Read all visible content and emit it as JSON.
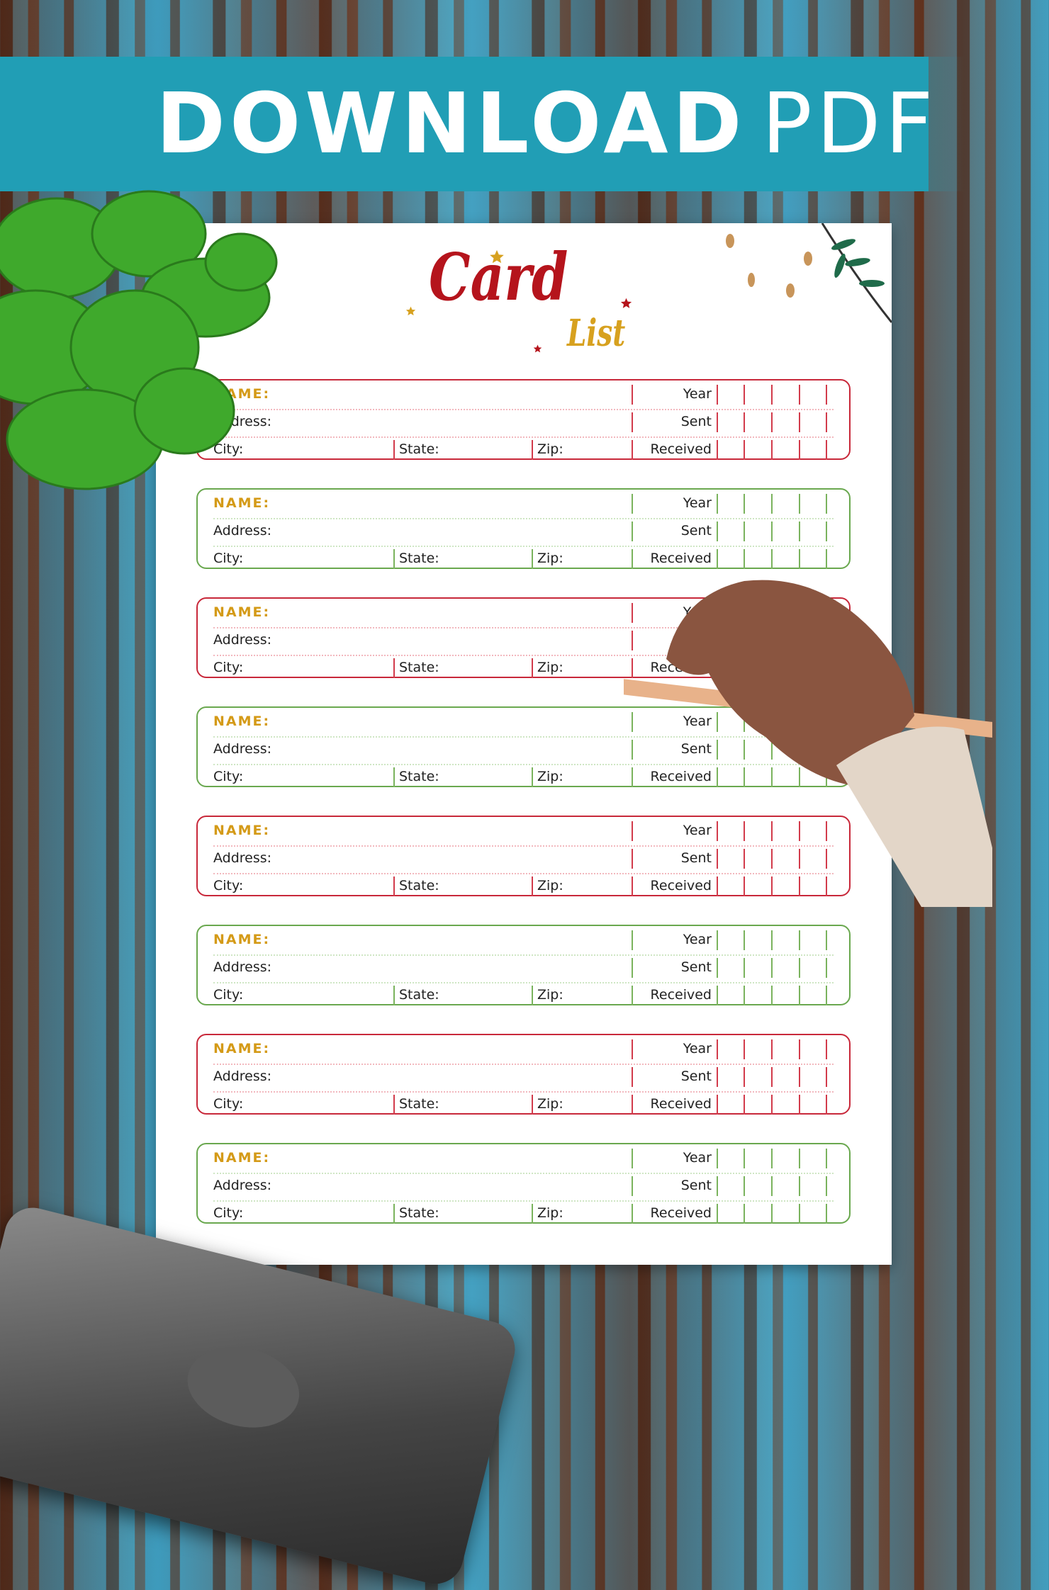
{
  "banner": {
    "bold": "DOWNLOAD",
    "light": "PDF",
    "color": "#219eb5"
  },
  "page": {
    "title_main": "Card",
    "title_sub": "List",
    "title_color": "#b5141c",
    "sub_color": "#d7a11f"
  },
  "labels": {
    "name": "NAME:",
    "address": "Address:",
    "city": "City:",
    "state": "State:",
    "zip": "Zip:",
    "year": "Year",
    "sent": "Sent",
    "received": "Received"
  },
  "colors": {
    "red": "#c8283a",
    "green": "#6aa84f"
  },
  "cards": [
    {
      "color": "red"
    },
    {
      "color": "green"
    },
    {
      "color": "red"
    },
    {
      "color": "green"
    },
    {
      "color": "red"
    },
    {
      "color": "green"
    },
    {
      "color": "red"
    },
    {
      "color": "green"
    }
  ]
}
